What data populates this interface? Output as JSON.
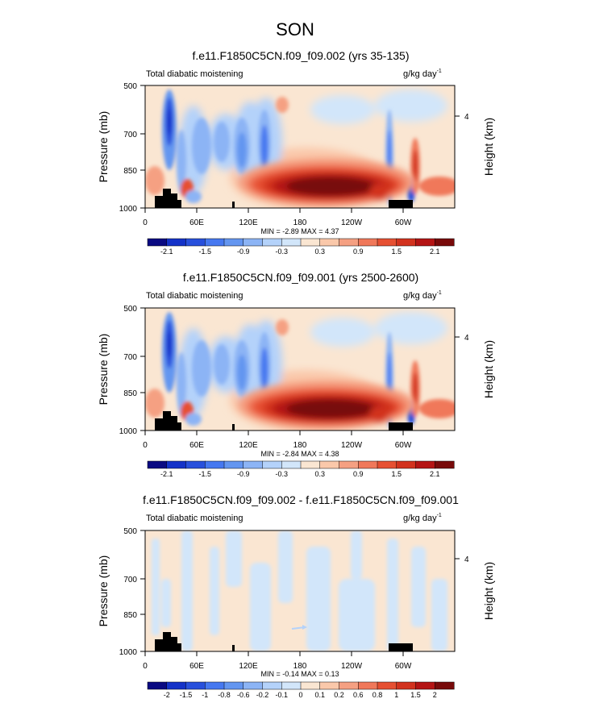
{
  "figure": {
    "title": "SON"
  },
  "common": {
    "left_label": "Total diabatic moistening",
    "units_main": "g/kg day",
    "units_sup": "-1",
    "ylabel": "Pressure (mb)",
    "ylabel_right": "Height (km)",
    "y_ticks": [
      "500",
      "700",
      "850",
      "1000"
    ],
    "y_right_ticks": [
      "4"
    ],
    "x_ticks": [
      "0",
      "60E",
      "120E",
      "180",
      "120W",
      "60W"
    ]
  },
  "chart_data": [
    {
      "type": "heatmap",
      "title": "f.e11.F1850C5CN.f09_f09.002 (yrs 35-135)",
      "stats": "MIN = -2.89   MAX =  4.37",
      "min": -2.89,
      "max": 4.37,
      "xlabel": "",
      "ylabel": "Pressure (mb)",
      "xlim": [
        0,
        360
      ],
      "ylim": [
        1000,
        500
      ],
      "colorbar_levels": [
        "-2.1",
        "-1.5",
        "-0.9",
        "-0.3",
        "0.3",
        "0.9",
        "1.5",
        "2.1"
      ],
      "colorbar_colors": [
        "#0a0a82",
        "#1432c8",
        "#2850dc",
        "#4678f0",
        "#6496f0",
        "#8cb4f5",
        "#b4d2fa",
        "#d2e6fa",
        "#fae6d2",
        "#fac8aa",
        "#f5a082",
        "#f0785a",
        "#e65032",
        "#d2321e",
        "#b41414",
        "#780a0a"
      ]
    },
    {
      "type": "heatmap",
      "title": "f.e11.F1850C5CN.f09_f09.001 (yrs 2500-2600)",
      "stats": "MIN = -2.84   MAX =  4.38",
      "min": -2.84,
      "max": 4.38,
      "xlabel": "",
      "ylabel": "Pressure (mb)",
      "xlim": [
        0,
        360
      ],
      "ylim": [
        1000,
        500
      ],
      "colorbar_levels": [
        "-2.1",
        "-1.5",
        "-0.9",
        "-0.3",
        "0.3",
        "0.9",
        "1.5",
        "2.1"
      ],
      "colorbar_colors": [
        "#0a0a82",
        "#1432c8",
        "#2850dc",
        "#4678f0",
        "#6496f0",
        "#8cb4f5",
        "#b4d2fa",
        "#d2e6fa",
        "#fae6d2",
        "#fac8aa",
        "#f5a082",
        "#f0785a",
        "#e65032",
        "#d2321e",
        "#b41414",
        "#780a0a"
      ]
    },
    {
      "type": "heatmap",
      "title": "f.e11.F1850C5CN.f09_f09.002 - f.e11.F1850C5CN.f09_f09.001",
      "stats": "MIN = -0.14   MAX =  0.13",
      "min": -0.14,
      "max": 0.13,
      "xlabel": "",
      "ylabel": "Pressure (mb)",
      "xlim": [
        0,
        360
      ],
      "ylim": [
        1000,
        500
      ],
      "colorbar_levels": [
        "-2",
        "-1.5",
        "-1",
        "-0.8",
        "-0.6",
        "-0.2",
        "-0.1",
        "0",
        "0.1",
        "0.2",
        "0.6",
        "0.8",
        "1",
        "1.5",
        "2"
      ],
      "colorbar_colors": [
        "#0a0a82",
        "#1432c8",
        "#2850dc",
        "#4678f0",
        "#6496f0",
        "#8cb4f5",
        "#b4d2fa",
        "#d2e6fa",
        "#fae6d2",
        "#fac8aa",
        "#f5a082",
        "#f0785a",
        "#e65032",
        "#d2321e",
        "#b41414",
        "#780a0a"
      ]
    }
  ]
}
